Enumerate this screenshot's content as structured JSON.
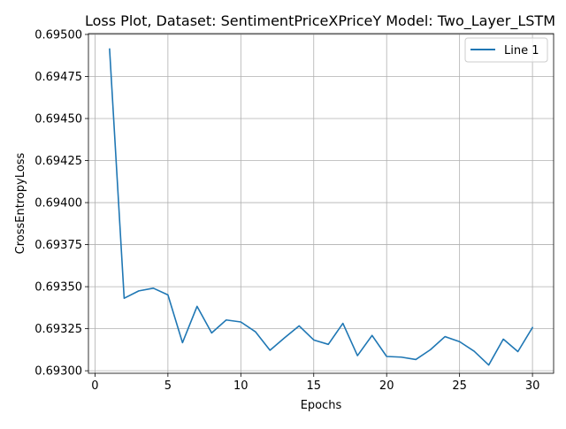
{
  "chart_data": {
    "type": "line",
    "title": "Loss Plot, Dataset: SentimentPriceXPriceY Model: Two_Layer_LSTM",
    "xlabel": "Epochs",
    "ylabel": "CrossEntropyLoss",
    "xlim": [
      -0.45,
      31.45
    ],
    "ylim": [
      0.692985,
      0.695005
    ],
    "x_ticks": [
      0,
      5,
      10,
      15,
      20,
      25,
      30
    ],
    "x_tick_labels": [
      "0",
      "5",
      "10",
      "15",
      "20",
      "25",
      "30"
    ],
    "y_ticks": [
      0.693,
      0.69325,
      0.6935,
      0.69375,
      0.694,
      0.69425,
      0.6945,
      0.69475,
      0.695
    ],
    "y_tick_labels": [
      "0.69300",
      "0.69325",
      "0.69350",
      "0.69375",
      "0.69400",
      "0.69425",
      "0.69450",
      "0.69475",
      "0.69500"
    ],
    "grid": true,
    "legend_position": "top-right",
    "series": [
      {
        "name": "Line 1",
        "color": "#1f77b4",
        "x": [
          1,
          2,
          3,
          4,
          5,
          6,
          7,
          8,
          9,
          10,
          11,
          12,
          13,
          14,
          15,
          16,
          17,
          18,
          19,
          20,
          21,
          22,
          23,
          24,
          25,
          26,
          27,
          28,
          29,
          30
        ],
        "values": [
          0.694913,
          0.693431,
          0.693475,
          0.693491,
          0.693451,
          0.693167,
          0.693383,
          0.693225,
          0.693302,
          0.69329,
          0.693232,
          0.693122,
          0.693196,
          0.693267,
          0.693183,
          0.693157,
          0.693282,
          0.69309,
          0.69321,
          0.693085,
          0.693081,
          0.693067,
          0.693125,
          0.693203,
          0.693173,
          0.693116,
          0.693034,
          0.693188,
          0.693114,
          0.693257
        ]
      }
    ]
  }
}
